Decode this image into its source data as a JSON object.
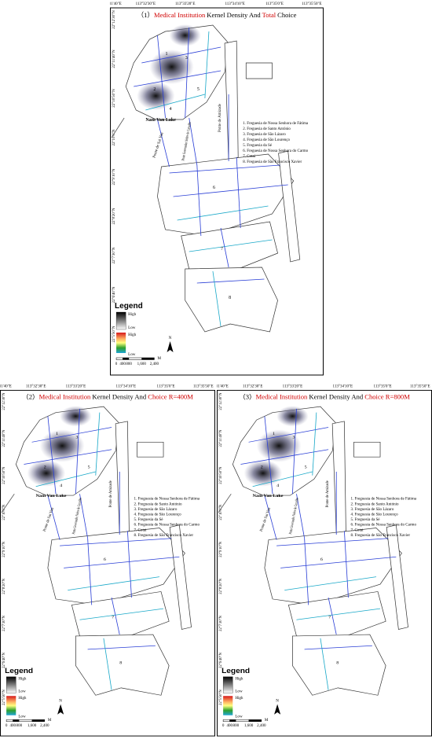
{
  "panels": [
    {
      "title": {
        "number": "（1）",
        "red1": "Medical Institution",
        "black1": "Kernel Density And",
        "red2": "Total",
        "black2": "Choice"
      },
      "lon_labels": [
        "113°31'40\"E",
        "113°32'30\"E",
        "113°33'20\"E",
        "113°34'10\"E",
        "113°35'0\"E",
        "113°35'50\"E"
      ],
      "lat_labels": [
        "22°12'30\"N",
        "22°11'40\"N",
        "22°10'50\"N",
        "22°10'0\"N",
        "22°9'10\"N",
        "22°8'20\"N",
        "22°7'30\"N",
        "22°6'40\"N",
        "22°5'50\"N"
      ],
      "places": {
        "lake": "Nam Van Lake",
        "bridge1": "Ponte de Amizade",
        "bridge2": "Ponte de Sai Van",
        "bridge3": "Ponte Governador Nobre de Carvalho"
      },
      "map_numbers": [
        "1",
        "2",
        "3",
        "4",
        "5",
        "6",
        "7",
        "8"
      ],
      "districts": [
        "1. Freguesia de Nossa Senhora de Fátima",
        "2. Freguesia de Santo António",
        "3. Freguesia de São Lázaro",
        "4. Freguesia de São Lourenço",
        "5. Freguesia da Sé",
        "6. Freguesia de Nossa Senhora do Carmo",
        "7. Cotai",
        "8. Freguesia de São Francisco Xavier"
      ],
      "legend": {
        "title": "Legend",
        "density_high": "High",
        "density_low": "Low",
        "choice_high": "High",
        "choice_low": "Low",
        "north": "N"
      },
      "scale": {
        "ticks": [
          "0",
          "400",
          "800",
          "1,600",
          "2,400"
        ],
        "unit": "M"
      }
    },
    {
      "title": {
        "number": "（2）",
        "red1": "Medical Institution",
        "black1": "Kernel Density And",
        "red2": "Choice R=400M"
      },
      "lon_labels": [
        "113°31'40\"E",
        "113°32'30\"E",
        "113°33'20\"E",
        "113°34'10\"E",
        "113°35'0\"E",
        "113°35'50\"E"
      ],
      "lat_labels": [
        "22°12'30\"N",
        "22°11'40\"N",
        "22°10'50\"N",
        "22°10'0\"N",
        "22°9'10\"N",
        "22°8'20\"N",
        "22°7'30\"N",
        "22°6'40\"N",
        "22°5'50\"N"
      ],
      "places": {
        "lake": "Nam Van Lake",
        "bridge1": "Ponte de Amizade",
        "bridge2": "Ponte de Sai Van",
        "bridge3": "Ponte Governador Nobre de Carvalho"
      },
      "map_numbers": [
        "1",
        "2",
        "3",
        "4",
        "5",
        "6",
        "7",
        "8"
      ],
      "districts": [
        "1. Freguesia de Nossa Senhora de Fátima",
        "2. Freguesia de Santo António",
        "3. Freguesia de São Lázaro",
        "4. Freguesia de São Lourenço",
        "5. Freguesia da Sé",
        "6. Freguesia de Nossa Senhora do Carmo",
        "7. Cotai",
        "8. Freguesia de São Francisco Xavier"
      ],
      "legend": {
        "title": "Legend",
        "density_high": "High",
        "density_low": "Low",
        "choice_high": "High",
        "choice_low": "Low",
        "north": "N"
      },
      "scale": {
        "ticks": [
          "0",
          "400",
          "800",
          "1,600",
          "2,400"
        ],
        "unit": "M"
      }
    },
    {
      "title": {
        "number": "（3）",
        "red1": "Medical Institution",
        "black1": "Kernel Density And",
        "red2": "Choice R=800M"
      },
      "lon_labels": [
        "113°31'40\"E",
        "113°32'30\"E",
        "113°33'20\"E",
        "113°34'10\"E",
        "113°35'0\"E",
        "113°35'50\"E"
      ],
      "lat_labels": [
        "22°12'30\"N",
        "22°11'40\"N",
        "22°10'50\"N",
        "22°10'0\"N",
        "22°9'10\"N",
        "22°8'20\"N",
        "22°7'30\"N",
        "22°6'40\"N",
        "22°5'50\"N"
      ],
      "places": {
        "lake": "Nam Van Lake",
        "bridge1": "Ponte de Amizade",
        "bridge2": "Ponte de Sai Van",
        "bridge3": "Ponte Governador Nobre de Carvalho"
      },
      "map_numbers": [
        "1",
        "2",
        "3",
        "4",
        "5",
        "6",
        "7",
        "8"
      ],
      "districts": [
        "1. Freguesia de Nossa Senhora de Fátima",
        "2. Freguesia de Santo António",
        "3. Freguesia de São Lázaro",
        "4. Freguesia de São Lourenço",
        "5. Freguesia da Sé",
        "6. Freguesia de Nossa Senhora do Carmo",
        "7. Cotai",
        "8. Freguesia de São Francisco Xavier"
      ],
      "legend": {
        "title": "Legend",
        "density_high": "High",
        "density_low": "Low",
        "choice_high": "High",
        "choice_low": "Low",
        "north": "N"
      },
      "scale": {
        "ticks": [
          "0",
          "400",
          "800",
          "1,600",
          "2,400"
        ],
        "unit": "M"
      }
    }
  ]
}
